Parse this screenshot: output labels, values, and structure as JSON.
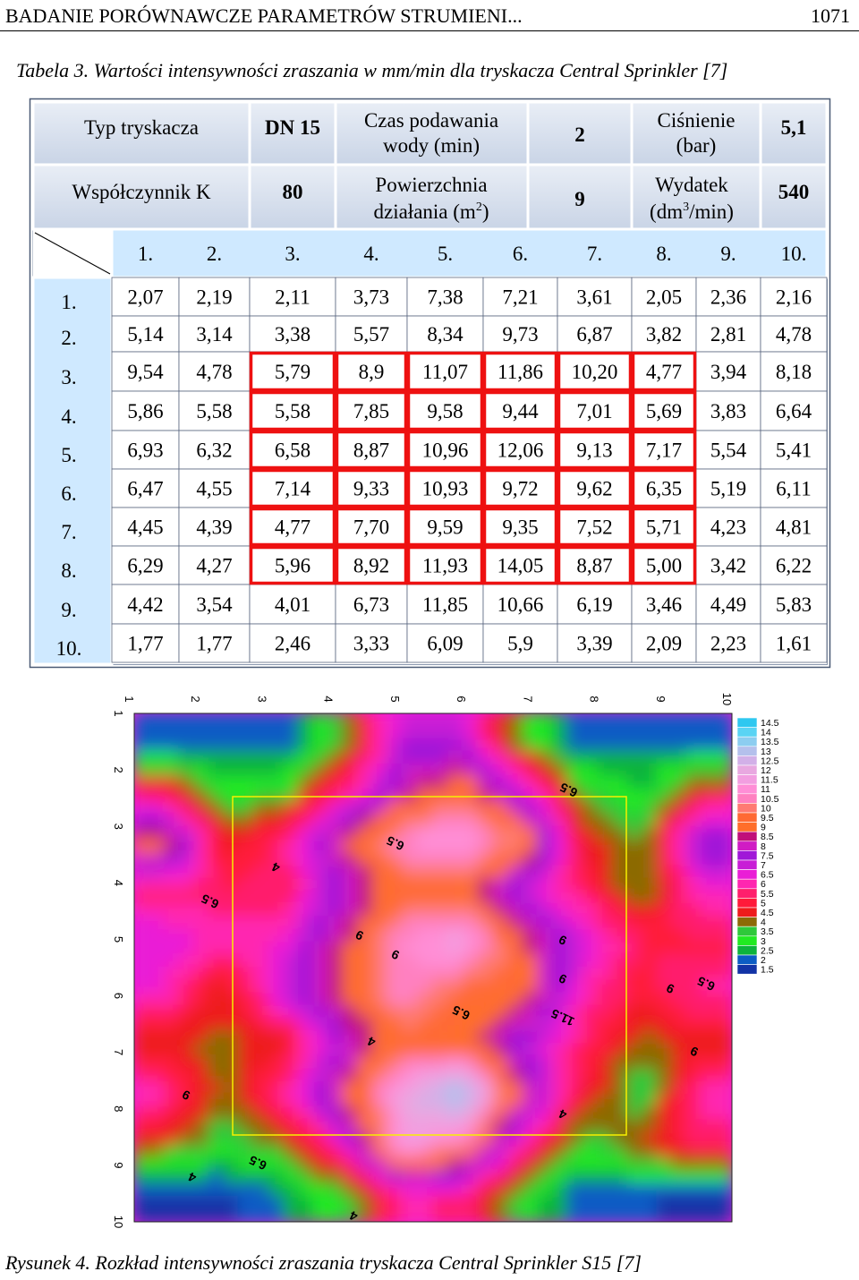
{
  "header": {
    "title": "BADANIE PORÓWNAWCZE PARAMETRÓW STRUMIENI...",
    "page": "1071"
  },
  "table_caption": "Tabela 3. Wartości intensywności zraszania w mm/min dla tryskacza Central Sprinkler [7]",
  "params": {
    "typ_label": "Typ tryskacza",
    "typ_value": "DN 15",
    "czas_label_1": "Czas podawania",
    "czas_label_2": "wody (min)",
    "czas_value": "2",
    "cisnienie_label_1": "Ciśnienie",
    "cisnienie_label_2": "(bar)",
    "cisnienie_value": "5,1",
    "k_label": "Współczynnik K",
    "k_value": "80",
    "pow_label_1": "Powierzchnia",
    "pow_label_2": "działania (m",
    "pow_sup": "2",
    "pow_label_3": ")",
    "pow_value": "9",
    "wyd_label_1": "Wydatek",
    "wyd_label_2": "(dm",
    "wyd_sup": "3",
    "wyd_label_3": "/min)",
    "wyd_value": "540"
  },
  "grid": {
    "col_headers": [
      "1.",
      "2.",
      "3.",
      "4.",
      "5.",
      "6.",
      "7.",
      "8.",
      "9.",
      "10."
    ],
    "row_headers": [
      "1.",
      "2.",
      "3.",
      "4.",
      "5.",
      "6.",
      "7.",
      "8.",
      "9.",
      "10."
    ],
    "rows": [
      [
        "2,07",
        "2,19",
        "2,11",
        "3,73",
        "7,38",
        "7,21",
        "3,61",
        "2,05",
        "2,36",
        "2,16"
      ],
      [
        "5,14",
        "3,14",
        "3,38",
        "5,57",
        "8,34",
        "9,73",
        "6,87",
        "3,82",
        "2,81",
        "4,78"
      ],
      [
        "9,54",
        "4,78",
        "5,79",
        "8,9",
        "11,07",
        "11,86",
        "10,20",
        "4,77",
        "3,94",
        "8,18"
      ],
      [
        "5,86",
        "5,58",
        "5,58",
        "7,85",
        "9,58",
        "9,44",
        "7,01",
        "5,69",
        "3,83",
        "6,64"
      ],
      [
        "6,93",
        "6,32",
        "6,58",
        "8,87",
        "10,96",
        "12,06",
        "9,13",
        "7,17",
        "5,54",
        "5,41"
      ],
      [
        "6,47",
        "4,55",
        "7,14",
        "9,33",
        "10,93",
        "9,72",
        "9,62",
        "6,35",
        "5,19",
        "6,11"
      ],
      [
        "4,45",
        "4,39",
        "4,77",
        "7,70",
        "9,59",
        "9,35",
        "7,52",
        "5,71",
        "4,23",
        "4,81"
      ],
      [
        "6,29",
        "4,27",
        "5,96",
        "8,92",
        "11,93",
        "14,05",
        "8,87",
        "5,00",
        "3,42",
        "6,22"
      ],
      [
        "4,42",
        "3,54",
        "4,01",
        "6,73",
        "11,85",
        "10,66",
        "6,19",
        "3,46",
        "4,49",
        "5,83"
      ],
      [
        "1,77",
        "1,77",
        "2,46",
        "3,33",
        "6,09",
        "5,9",
        "3,39",
        "2,09",
        "2,23",
        "1,61"
      ]
    ],
    "highlight": {
      "rows": [
        3,
        8
      ],
      "cols": [
        3,
        8
      ]
    }
  },
  "chart_data": {
    "type": "heatmap",
    "x_ticks": [
      "1",
      "2",
      "3",
      "4",
      "5",
      "6",
      "7",
      "8",
      "9",
      "10"
    ],
    "y_ticks": [
      "1",
      "2",
      "3",
      "4",
      "5",
      "6",
      "7",
      "8",
      "9",
      "10"
    ],
    "colorbar_labels": [
      "14.5",
      "14",
      "13.5",
      "13",
      "12.5",
      "12",
      "11.5",
      "11",
      "10.5",
      "10",
      "9.5",
      "9",
      "8.5",
      "8",
      "7.5",
      "7",
      "6.5",
      "6",
      "5.5",
      "5",
      "4.5",
      "4",
      "3.5",
      "3",
      "2.5",
      "2",
      "1.5"
    ],
    "colorbar_colors": [
      "#2ec8f0",
      "#5ad4f4",
      "#8ccdf0",
      "#b4c0ec",
      "#d2b0e8",
      "#e8a8e0",
      "#f29ee0",
      "#ff8ed6",
      "#ff80c0",
      "#ff7a72",
      "#ff6a34",
      "#ff6e2a",
      "#c0107a",
      "#d01cc4",
      "#a018d8",
      "#c81ed6",
      "#ea1ed6",
      "#ff26b0",
      "#ff1f6c",
      "#ff1a3a",
      "#ee1b1b",
      "#8c6a06",
      "#2ec93a",
      "#21ea21",
      "#0db33c",
      "#0b5cc4",
      "#1233a6"
    ],
    "contour_labels": [
      "4",
      "4",
      "4",
      "4",
      "4",
      "6.5",
      "6.5",
      "6.5",
      "6.5",
      "6.5",
      "6.5",
      "9",
      "9",
      "9",
      "9",
      "9",
      "9",
      "9",
      "11.5"
    ],
    "values_source": "grid.rows"
  },
  "figure_caption": "Rysunek 4. Rozkład intensywności zraszania tryskacza Central Sprinkler S15 [7]"
}
